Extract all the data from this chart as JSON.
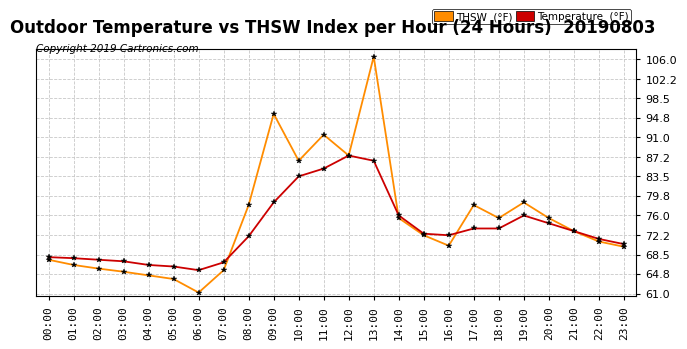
{
  "title": "Outdoor Temperature vs THSW Index per Hour (24 Hours)  20190803",
  "copyright": "Copyright 2019 Cartronics.com",
  "x_labels": [
    "00:00",
    "01:00",
    "02:00",
    "03:00",
    "04:00",
    "05:00",
    "06:00",
    "07:00",
    "08:00",
    "09:00",
    "10:00",
    "11:00",
    "12:00",
    "13:00",
    "14:00",
    "15:00",
    "16:00",
    "17:00",
    "18:00",
    "19:00",
    "20:00",
    "21:00",
    "22:00",
    "23:00"
  ],
  "temperature": [
    68.0,
    67.8,
    67.5,
    67.2,
    66.5,
    66.2,
    65.5,
    67.0,
    72.0,
    78.5,
    83.5,
    85.0,
    87.5,
    86.5,
    76.0,
    72.5,
    72.2,
    73.5,
    73.5,
    76.0,
    74.5,
    73.0,
    71.5,
    70.5
  ],
  "thsw": [
    67.5,
    66.5,
    65.8,
    65.2,
    64.5,
    63.8,
    61.2,
    65.5,
    78.0,
    95.5,
    86.5,
    91.5,
    87.5,
    106.5,
    75.5,
    72.2,
    70.2,
    78.0,
    75.5,
    78.5,
    75.5,
    73.0,
    71.0,
    70.0
  ],
  "temp_color": "#cc0000",
  "thsw_color": "#ff8c00",
  "ylim_min": 61.0,
  "ylim_max": 108.0,
  "yticks": [
    61.0,
    64.8,
    68.5,
    72.2,
    76.0,
    79.8,
    83.5,
    87.2,
    91.0,
    94.8,
    98.5,
    102.2,
    106.0
  ],
  "legend_thsw_label": "THSW  (°F)",
  "legend_temp_label": "Temperature  (°F)",
  "legend_thsw_bg": "#ff8c00",
  "legend_temp_bg": "#cc0000",
  "background_color": "#ffffff",
  "grid_color": "#c8c8c8",
  "title_fontsize": 12,
  "copyright_fontsize": 7.5,
  "tick_fontsize": 8
}
